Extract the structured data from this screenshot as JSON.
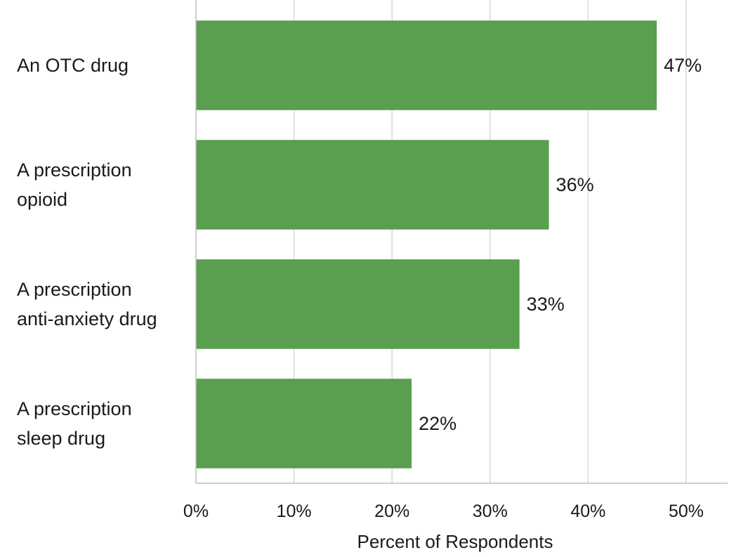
{
  "chart_data": {
    "type": "bar",
    "orientation": "horizontal",
    "categories": [
      [
        "An OTC drug"
      ],
      [
        "A prescription",
        "opioid"
      ],
      [
        "A prescription",
        "anti-anxiety drug"
      ],
      [
        "A prescription",
        "sleep drug"
      ]
    ],
    "values": [
      47,
      36,
      33,
      22
    ],
    "value_labels": [
      "47%",
      "36%",
      "33%",
      "22%"
    ],
    "xlabel": "Percent of Respondents",
    "xlim": [
      0,
      50
    ],
    "xticks": [
      0,
      10,
      20,
      30,
      40,
      50
    ],
    "xtick_labels": [
      "0%",
      "10%",
      "20%",
      "30%",
      "40%",
      "50%"
    ],
    "bar_color": "#5a9e50",
    "grid": "vertical",
    "legend": "none"
  }
}
